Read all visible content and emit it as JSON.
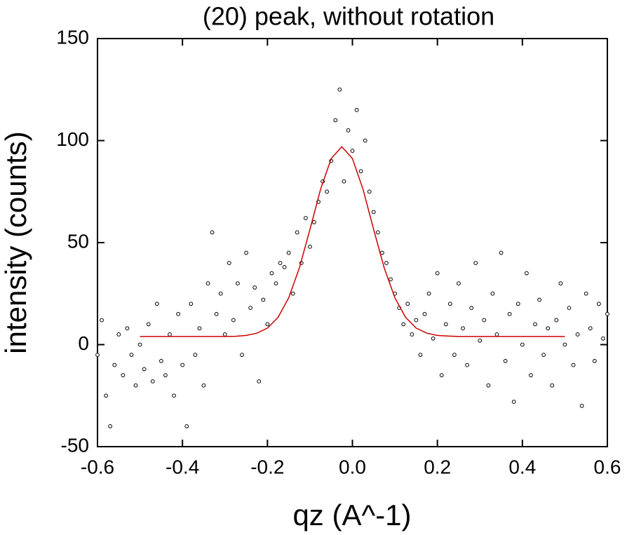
{
  "chart_data": {
    "type": "scatter",
    "title": "(20) peak, without rotation",
    "x_label": "qz (A^-1)",
    "y_label": "intensity (counts)",
    "xlim": [
      -0.6,
      0.6
    ],
    "ylim": [
      -50,
      150
    ],
    "xticks": [
      -0.6,
      -0.4,
      -0.2,
      {
        "value": 0,
        "label": "0.0"
      },
      0.2,
      0.4,
      0.6
    ],
    "yticks": [
      -50,
      0,
      50,
      100,
      150
    ],
    "series": [
      {
        "style": "markers",
        "color": "#000000",
        "x": [
          -0.6,
          -0.59,
          -0.58,
          -0.57,
          -0.56,
          -0.55,
          -0.54,
          -0.53,
          -0.52,
          -0.51,
          -0.5,
          -0.49,
          -0.48,
          -0.47,
          -0.46,
          -0.45,
          -0.44,
          -0.43,
          -0.42,
          -0.41,
          -0.4,
          -0.39,
          -0.38,
          -0.37,
          -0.36,
          -0.35,
          -0.34,
          -0.33,
          -0.32,
          -0.31,
          -0.3,
          -0.29,
          -0.28,
          -0.27,
          -0.26,
          -0.25,
          -0.24,
          -0.23,
          -0.22,
          -0.21,
          -0.2,
          -0.19,
          -0.18,
          -0.17,
          -0.16,
          -0.15,
          -0.14,
          -0.13,
          -0.12,
          -0.11,
          -0.1,
          -0.09,
          -0.08,
          -0.07,
          -0.06,
          -0.05,
          -0.04,
          -0.03,
          -0.02,
          -0.01,
          0,
          0.01,
          0.02,
          0.03,
          0.04,
          0.05,
          0.06,
          0.07,
          0.08,
          0.09,
          0.1,
          0.11,
          0.12,
          0.13,
          0.14,
          0.15,
          0.16,
          0.17,
          0.18,
          0.19,
          0.2,
          0.21,
          0.22,
          0.23,
          0.24,
          0.25,
          0.26,
          0.27,
          0.28,
          0.29,
          0.3,
          0.31,
          0.32,
          0.33,
          0.34,
          0.35,
          0.36,
          0.37,
          0.38,
          0.39,
          0.4,
          0.41,
          0.42,
          0.43,
          0.44,
          0.45,
          0.46,
          0.47,
          0.48,
          0.49,
          0.5,
          0.51,
          0.52,
          0.53,
          0.54,
          0.55,
          0.56,
          0.57,
          0.58,
          0.59,
          0.6
        ],
        "values": [
          -5,
          12,
          -25,
          -40,
          -10,
          5,
          -15,
          8,
          -5,
          -20,
          0,
          -12,
          10,
          -18,
          20,
          -8,
          -15,
          5,
          -25,
          15,
          -10,
          -40,
          20,
          -5,
          8,
          -20,
          30,
          55,
          15,
          25,
          5,
          40,
          12,
          30,
          -5,
          45,
          18,
          28,
          -18,
          22,
          10,
          35,
          30,
          40,
          38,
          45,
          25,
          55,
          40,
          62,
          48,
          60,
          70,
          80,
          75,
          90,
          110,
          125,
          80,
          105,
          95,
          115,
          85,
          100,
          75,
          65,
          55,
          45,
          40,
          32,
          25,
          18,
          10,
          20,
          5,
          12,
          -5,
          15,
          25,
          3,
          35,
          -15,
          10,
          20,
          -5,
          30,
          8,
          -10,
          18,
          40,
          2,
          12,
          -20,
          25,
          5,
          45,
          -8,
          15,
          -28,
          20,
          0,
          35,
          -15,
          10,
          22,
          -5,
          8,
          -20,
          12,
          30,
          0,
          18,
          -10,
          5,
          -30,
          25,
          8,
          -8,
          20,
          3,
          15
        ]
      },
      {
        "style": "line",
        "color": "#cc0000",
        "x": [
          -0.5,
          -0.475,
          -0.45,
          -0.425,
          -0.4,
          -0.375,
          -0.35,
          -0.325,
          -0.3,
          -0.275,
          -0.25,
          -0.225,
          -0.2,
          -0.175,
          -0.15,
          -0.125,
          -0.1,
          -0.075,
          -0.05,
          -0.025,
          0,
          0.025,
          0.05,
          0.075,
          0.1,
          0.125,
          0.15,
          0.175,
          0.2,
          0.225,
          0.25,
          0.275,
          0.3,
          0.325,
          0.35,
          0.375,
          0.4,
          0.425,
          0.45,
          0.475,
          0.5
        ],
        "values": [
          4,
          4,
          4,
          4,
          4,
          4,
          4,
          4,
          4,
          4.1,
          4.5,
          5.6,
          8.1,
          13.4,
          22.9,
          37.5,
          56.4,
          76.1,
          91.2,
          97,
          91.2,
          76.1,
          56.4,
          37.5,
          22.9,
          13.4,
          8.1,
          5.6,
          4.5,
          4.2,
          4,
          4,
          4,
          4,
          4,
          4,
          4,
          4,
          4,
          4,
          4
        ]
      }
    ]
  }
}
